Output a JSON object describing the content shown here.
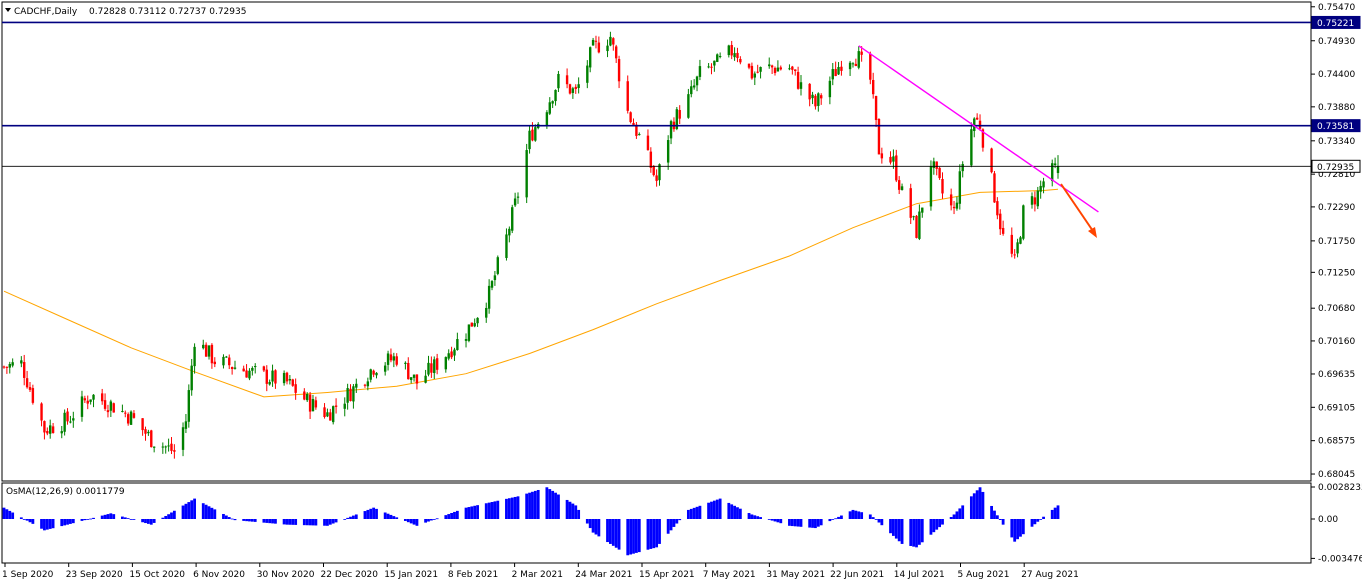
{
  "header": {
    "symbol": "CADCHF,Daily",
    "ohlc": "0.72828 0.73112 0.72737 0.72935"
  },
  "indicator": {
    "label": "OsMA(12,26,9) 0.0011779",
    "axis_labels": [
      "0.0028235",
      "0.00",
      "-0.003476"
    ]
  },
  "price_axis": {
    "ticks": [
      "0.75470",
      "0.74930",
      "0.74400",
      "0.73880",
      "0.73340",
      "0.72810",
      "0.72290",
      "0.71750",
      "0.71250",
      "0.70680",
      "0.70160",
      "0.69635",
      "0.69105",
      "0.68575",
      "0.68045"
    ],
    "highlight_labels": [
      "0.75221",
      "0.73581",
      "0.72935"
    ]
  },
  "date_axis": {
    "ticks": [
      "1 Sep 2020",
      "23 Sep 2020",
      "15 Oct 2020",
      "6 Nov 2020",
      "30 Nov 2020",
      "22 Dec 2020",
      "15 Jan 2021",
      "8 Feb 2021",
      "2 Mar 2021",
      "24 Mar 2021",
      "15 Apr 2021",
      "7 May 2021",
      "31 May 2021",
      "22 Jun 2021",
      "14 Jul 2021",
      "5 Aug 2021",
      "27 Aug 2021"
    ]
  },
  "colors": {
    "bull": "#008000",
    "bear": "#ff0000",
    "ma": "#ffa500",
    "hline": "#000080",
    "trendline": "#ff00ff",
    "arrow": "#ff4500",
    "osma": "#0000ff"
  },
  "chart_data": {
    "type": "candlestick",
    "symbol": "CADCHF",
    "timeframe": "Daily",
    "last_bar": {
      "open": 0.72828,
      "high": 0.73112,
      "low": 0.72737,
      "close": 0.72935
    },
    "ylim": [
      0.6795,
      0.7553
    ],
    "horizontal_levels": [
      0.75221,
      0.73581,
      0.72935
    ],
    "trendline": {
      "from": {
        "date": "2021-06-24",
        "price": 0.7485
      },
      "to": {
        "date": "2021-09-15",
        "price": 0.7221
      }
    },
    "ma_curve": [
      {
        "date": "2020-09-01",
        "value": 0.7095
      },
      {
        "date": "2020-09-23",
        "value": 0.705
      },
      {
        "date": "2020-10-15",
        "value": 0.7005
      },
      {
        "date": "2020-11-06",
        "value": 0.6967
      },
      {
        "date": "2020-11-30",
        "value": 0.6927
      },
      {
        "date": "2020-12-22",
        "value": 0.6934
      },
      {
        "date": "2021-01-15",
        "value": 0.6944
      },
      {
        "date": "2021-02-08",
        "value": 0.6964
      },
      {
        "date": "2021-03-02",
        "value": 0.6996
      },
      {
        "date": "2021-03-24",
        "value": 0.7034
      },
      {
        "date": "2021-04-15",
        "value": 0.7075
      },
      {
        "date": "2021-05-07",
        "value": 0.7112
      },
      {
        "date": "2021-05-31",
        "value": 0.7151
      },
      {
        "date": "2021-06-22",
        "value": 0.7196
      },
      {
        "date": "2021-07-14",
        "value": 0.7234
      },
      {
        "date": "2021-08-05",
        "value": 0.7252
      },
      {
        "date": "2021-08-27",
        "value": 0.7255
      },
      {
        "date": "2021-09-01",
        "value": 0.7257
      }
    ],
    "price_path": [
      {
        "date": "2020-09-01",
        "close": 0.6975
      },
      {
        "date": "2020-09-07",
        "close": 0.698
      },
      {
        "date": "2020-09-15",
        "close": 0.6875
      },
      {
        "date": "2020-09-23",
        "close": 0.689
      },
      {
        "date": "2020-10-01",
        "close": 0.693
      },
      {
        "date": "2020-10-08",
        "close": 0.6915
      },
      {
        "date": "2020-10-15",
        "close": 0.6895
      },
      {
        "date": "2020-10-22",
        "close": 0.686
      },
      {
        "date": "2020-10-30",
        "close": 0.684
      },
      {
        "date": "2020-11-03",
        "close": 0.689
      },
      {
        "date": "2020-11-06",
        "close": 0.702
      },
      {
        "date": "2020-11-13",
        "close": 0.6985
      },
      {
        "date": "2020-11-20",
        "close": 0.6975
      },
      {
        "date": "2020-11-30",
        "close": 0.696
      },
      {
        "date": "2020-12-08",
        "close": 0.695
      },
      {
        "date": "2020-12-15",
        "close": 0.692
      },
      {
        "date": "2020-12-22",
        "close": 0.69
      },
      {
        "date": "2020-12-30",
        "close": 0.6935
      },
      {
        "date": "2021-01-07",
        "close": 0.6975
      },
      {
        "date": "2021-01-15",
        "close": 0.699
      },
      {
        "date": "2021-01-22",
        "close": 0.695
      },
      {
        "date": "2021-01-29",
        "close": 0.698
      },
      {
        "date": "2021-02-08",
        "close": 0.703
      },
      {
        "date": "2021-02-16",
        "close": 0.709
      },
      {
        "date": "2021-02-22",
        "close": 0.718
      },
      {
        "date": "2021-02-26",
        "close": 0.725
      },
      {
        "date": "2021-03-02",
        "close": 0.734
      },
      {
        "date": "2021-03-08",
        "close": 0.739
      },
      {
        "date": "2021-03-12",
        "close": 0.743
      },
      {
        "date": "2021-03-18",
        "close": 0.741
      },
      {
        "date": "2021-03-24",
        "close": 0.748
      },
      {
        "date": "2021-03-30",
        "close": 0.75
      },
      {
        "date": "2021-04-05",
        "close": 0.738
      },
      {
        "date": "2021-04-09",
        "close": 0.734
      },
      {
        "date": "2021-04-15",
        "close": 0.727
      },
      {
        "date": "2021-04-20",
        "close": 0.736
      },
      {
        "date": "2021-04-26",
        "close": 0.74
      },
      {
        "date": "2021-04-30",
        "close": 0.744
      },
      {
        "date": "2021-05-07",
        "close": 0.746
      },
      {
        "date": "2021-05-12",
        "close": 0.748
      },
      {
        "date": "2021-05-18",
        "close": 0.744
      },
      {
        "date": "2021-05-24",
        "close": 0.745
      },
      {
        "date": "2021-05-31",
        "close": 0.745
      },
      {
        "date": "2021-06-04",
        "close": 0.742
      },
      {
        "date": "2021-06-09",
        "close": 0.739
      },
      {
        "date": "2021-06-14",
        "close": 0.743
      },
      {
        "date": "2021-06-18",
        "close": 0.746
      },
      {
        "date": "2021-06-22",
        "close": 0.747
      },
      {
        "date": "2021-06-24",
        "close": 0.7465
      },
      {
        "date": "2021-06-28",
        "close": 0.743
      },
      {
        "date": "2021-07-01",
        "close": 0.732
      },
      {
        "date": "2021-07-06",
        "close": 0.73
      },
      {
        "date": "2021-07-09",
        "close": 0.725
      },
      {
        "date": "2021-07-14",
        "close": 0.719
      },
      {
        "date": "2021-07-19",
        "close": 0.73
      },
      {
        "date": "2021-07-23",
        "close": 0.725
      },
      {
        "date": "2021-07-27",
        "close": 0.722
      },
      {
        "date": "2021-07-30",
        "close": 0.73
      },
      {
        "date": "2021-08-03",
        "close": 0.737
      },
      {
        "date": "2021-08-05",
        "close": 0.736
      },
      {
        "date": "2021-08-09",
        "close": 0.727
      },
      {
        "date": "2021-08-13",
        "close": 0.718
      },
      {
        "date": "2021-08-17",
        "close": 0.714
      },
      {
        "date": "2021-08-20",
        "close": 0.722
      },
      {
        "date": "2021-08-25",
        "close": 0.725
      },
      {
        "date": "2021-08-27",
        "close": 0.727
      },
      {
        "date": "2021-09-01",
        "close": 0.7294
      }
    ],
    "osma_path": [
      {
        "date": "2020-09-01",
        "value": 0.001
      },
      {
        "date": "2020-09-15",
        "value": -0.001
      },
      {
        "date": "2020-09-23",
        "value": -0.0005
      },
      {
        "date": "2020-10-08",
        "value": 0.0005
      },
      {
        "date": "2020-10-22",
        "value": -0.0005
      },
      {
        "date": "2020-11-06",
        "value": 0.0018
      },
      {
        "date": "2020-11-20",
        "value": -0.0001
      },
      {
        "date": "2020-12-08",
        "value": -0.0005
      },
      {
        "date": "2020-12-22",
        "value": -0.0006
      },
      {
        "date": "2021-01-07",
        "value": 0.001
      },
      {
        "date": "2021-01-22",
        "value": -0.0006
      },
      {
        "date": "2021-02-08",
        "value": 0.001
      },
      {
        "date": "2021-02-26",
        "value": 0.002
      },
      {
        "date": "2021-03-08",
        "value": 0.0028
      },
      {
        "date": "2021-03-18",
        "value": 0.0012
      },
      {
        "date": "2021-03-24",
        "value": -0.0012
      },
      {
        "date": "2021-04-05",
        "value": -0.0032
      },
      {
        "date": "2021-04-15",
        "value": -0.0025
      },
      {
        "date": "2021-04-26",
        "value": 0.0008
      },
      {
        "date": "2021-05-07",
        "value": 0.0018
      },
      {
        "date": "2021-05-18",
        "value": 0.0004
      },
      {
        "date": "2021-05-31",
        "value": -0.0006
      },
      {
        "date": "2021-06-09",
        "value": -0.0008
      },
      {
        "date": "2021-06-22",
        "value": 0.0008
      },
      {
        "date": "2021-06-28",
        "value": 0.0004
      },
      {
        "date": "2021-07-09",
        "value": -0.0022
      },
      {
        "date": "2021-07-14",
        "value": -0.0025
      },
      {
        "date": "2021-07-27",
        "value": 0.0004
      },
      {
        "date": "2021-08-05",
        "value": 0.0028
      },
      {
        "date": "2021-08-13",
        "value": -0.0005
      },
      {
        "date": "2021-08-17",
        "value": -0.002
      },
      {
        "date": "2021-08-27",
        "value": 0.0002
      },
      {
        "date": "2021-09-01",
        "value": 0.0012
      }
    ]
  }
}
